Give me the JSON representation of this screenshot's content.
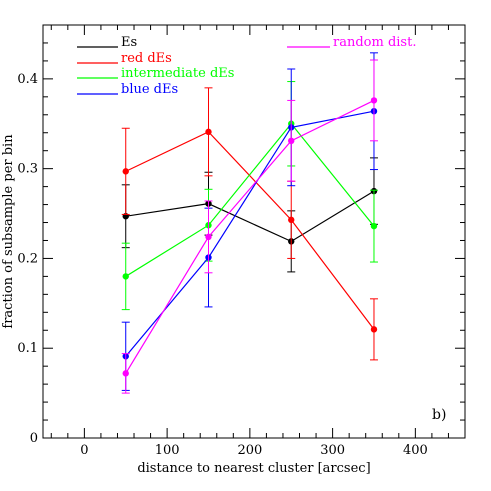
{
  "chart_data": {
    "type": "line",
    "xlabel": "distance to nearest cluster [arcsec]",
    "ylabel": "fraction of subsample per bin",
    "xlim": [
      -50,
      460
    ],
    "ylim": [
      0,
      0.46
    ],
    "x_ticks": [
      0,
      100,
      200,
      300,
      400
    ],
    "y_ticks": [
      0,
      0.1,
      0.2,
      0.3,
      0.4
    ],
    "x_tick_labels": [
      "0",
      "100",
      "200",
      "300",
      "400"
    ],
    "y_tick_labels": [
      "0",
      "0.1",
      "0.2",
      "0.3",
      "0.4"
    ],
    "x_minor_step": 20,
    "y_minor_step": 0.02,
    "grid": false,
    "legend_placement": "top",
    "panel_label": "b)",
    "series": [
      {
        "name": "Es",
        "color": "#000000",
        "x": [
          50,
          150,
          250,
          350
        ],
        "values": [
          0.247,
          0.261,
          0.219,
          0.275
        ],
        "err": [
          0.035,
          0.035,
          0.034,
          0.037
        ]
      },
      {
        "name": "red dEs",
        "color": "#ff0000",
        "x": [
          50,
          150,
          250,
          350
        ],
        "values": [
          0.297,
          0.341,
          0.243,
          0.121
        ],
        "err": [
          0.048,
          0.049,
          0.043,
          0.034
        ]
      },
      {
        "name": "intermediate dEs",
        "color": "#00ff00",
        "x": [
          50,
          150,
          250,
          350
        ],
        "values": [
          0.18,
          0.237,
          0.35,
          0.236
        ],
        "err": [
          0.037,
          0.04,
          0.047,
          0.04
        ]
      },
      {
        "name": "blue dEs",
        "color": "#0000ff",
        "x": [
          50,
          150,
          250,
          350
        ],
        "values": [
          0.091,
          0.201,
          0.346,
          0.364
        ],
        "err": [
          0.038,
          0.055,
          0.065,
          0.065
        ]
      },
      {
        "name": "random dist.",
        "color": "#ff00ff",
        "x": [
          50,
          150,
          250,
          350
        ],
        "values": [
          0.072,
          0.224,
          0.331,
          0.376
        ],
        "err": [
          0.022,
          0.04,
          0.045,
          0.045
        ]
      }
    ]
  }
}
